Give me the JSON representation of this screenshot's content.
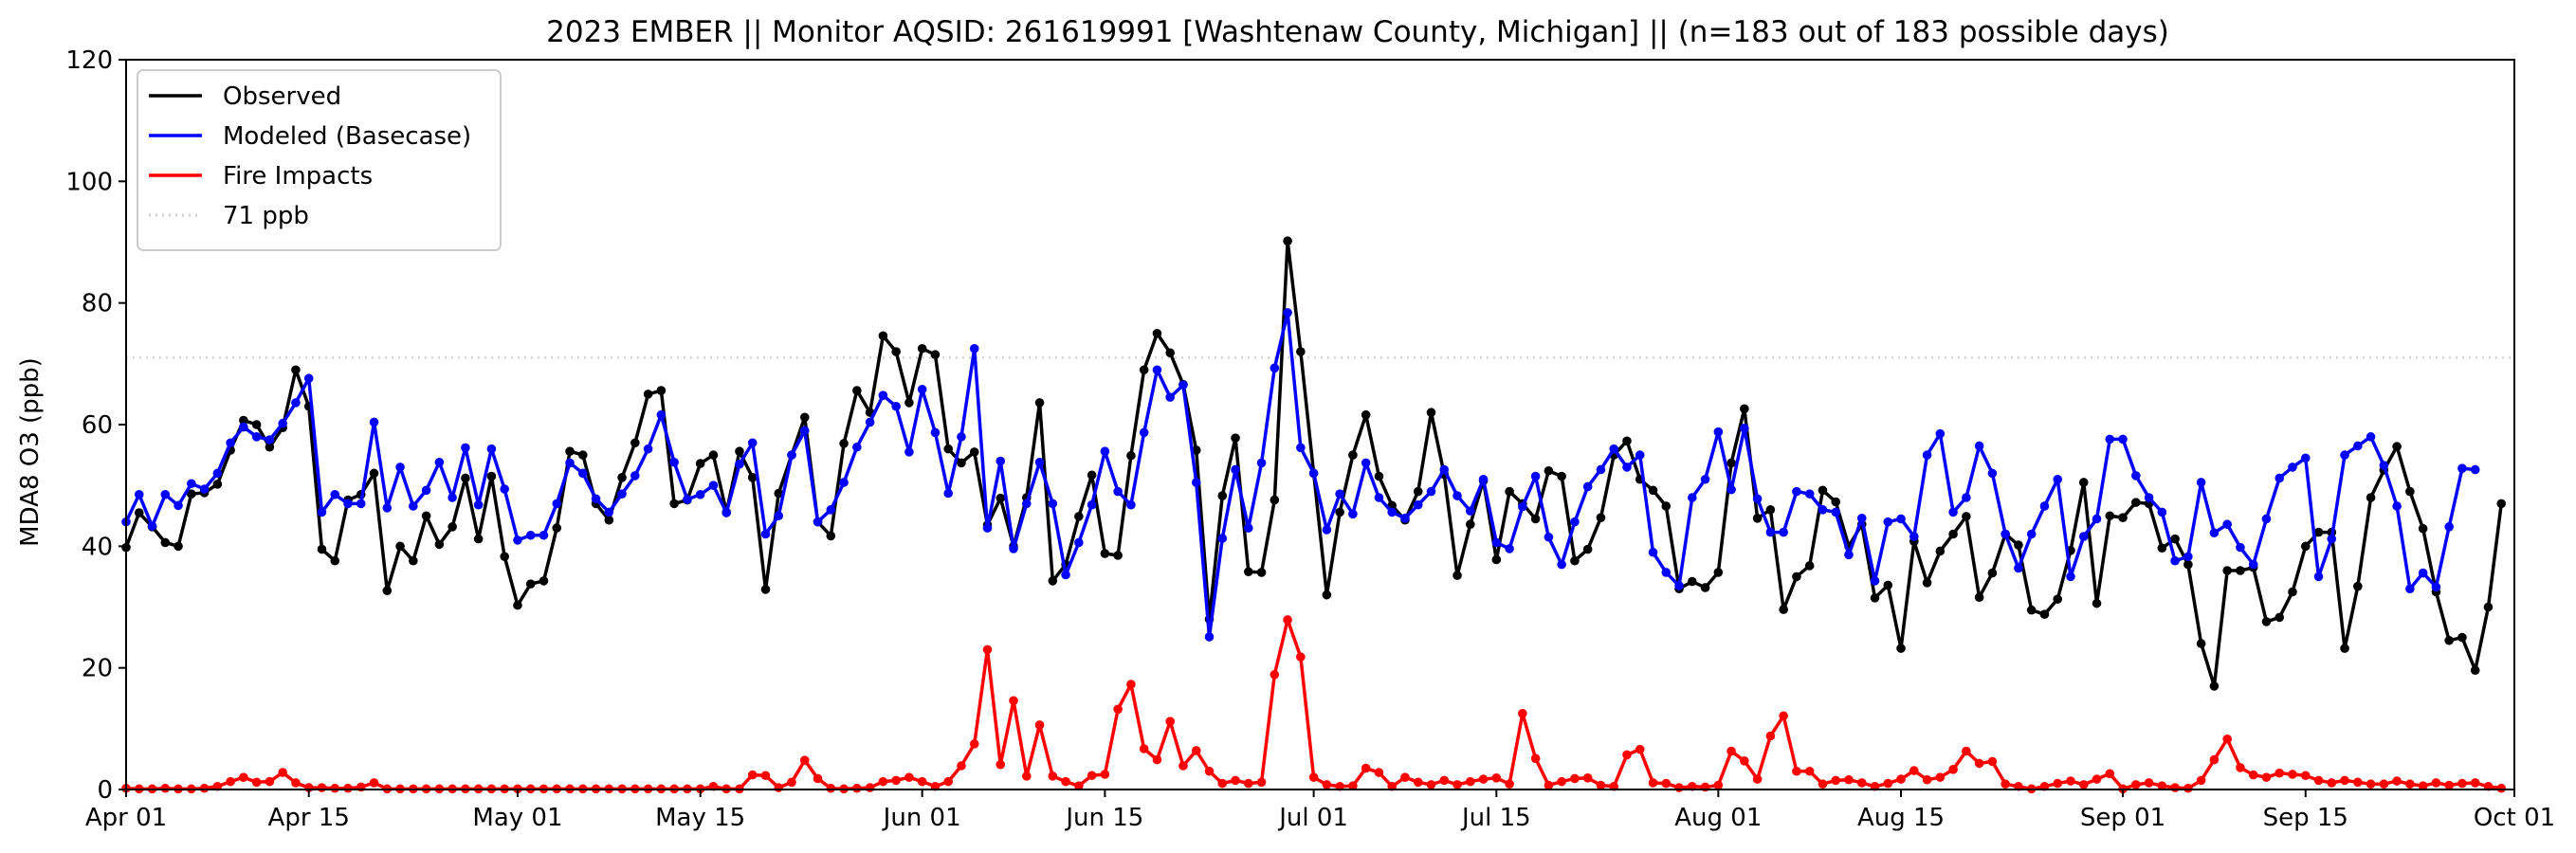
{
  "chart_data": {
    "type": "line",
    "title": "2023 EMBER || Monitor AQSID: 261619991 [Washtenaw County, Michigan] || (n=183 out of 183 possible days)",
    "xlabel": "",
    "ylabel": "MDA8 O3 (ppb)",
    "ylim": [
      0,
      120
    ],
    "yticks": [
      0,
      20,
      40,
      60,
      80,
      100,
      120
    ],
    "xlim": [
      "2023-04-01",
      "2023-10-01"
    ],
    "xtick_labels": [
      {
        "date": "2023-04-01",
        "label": "Apr 01"
      },
      {
        "date": "2023-04-15",
        "label": "Apr 15"
      },
      {
        "date": "2023-05-01",
        "label": "May 01"
      },
      {
        "date": "2023-05-15",
        "label": "May 15"
      },
      {
        "date": "2023-06-01",
        "label": "Jun 01"
      },
      {
        "date": "2023-06-15",
        "label": "Jun 15"
      },
      {
        "date": "2023-07-01",
        "label": "Jul 01"
      },
      {
        "date": "2023-07-15",
        "label": "Jul 15"
      },
      {
        "date": "2023-08-01",
        "label": "Aug 01"
      },
      {
        "date": "2023-08-15",
        "label": "Aug 15"
      },
      {
        "date": "2023-09-01",
        "label": "Sep 01"
      },
      {
        "date": "2023-09-15",
        "label": "Sep 15"
      },
      {
        "date": "2023-10-01",
        "label": "Oct 01"
      }
    ],
    "grid": false,
    "legend_position": "upper-left",
    "x_start": "2023-04-01",
    "x_end": "2023-09-30",
    "x_step": "1 day",
    "series": [
      {
        "name": "Observed",
        "color": "#000000",
        "marker": "circle",
        "values": [
          39.8,
          45.5,
          43.2,
          40.6,
          40.0,
          48.6,
          48.8,
          50.2,
          55.8,
          60.7,
          60.0,
          56.3,
          59.5,
          69.0,
          63.0,
          39.5,
          37.6,
          47.6,
          48.5,
          52.0,
          32.7,
          40.0,
          37.6,
          45.0,
          40.3,
          43.2,
          51.2,
          41.2,
          51.5,
          38.3,
          30.3,
          33.8,
          34.3,
          43.0,
          55.6,
          55.0,
          47.0,
          44.3,
          51.3,
          57.0,
          65.0,
          65.6,
          47.0,
          47.6,
          53.6,
          55.0,
          45.6,
          55.6,
          51.3,
          32.9,
          48.7,
          55.0,
          61.2,
          44.0,
          41.7,
          56.9,
          65.6,
          62.0,
          74.6,
          72.0,
          63.6,
          72.5,
          71.5,
          56.0,
          53.7,
          55.5,
          43.5,
          47.9,
          40.0,
          48.0,
          63.6,
          34.3,
          37.0,
          44.9,
          51.7,
          38.8,
          38.5,
          54.9,
          69.0,
          75.0,
          71.8,
          66.6,
          55.8,
          28.0,
          48.3,
          57.8,
          35.8,
          35.7,
          47.6,
          90.2,
          72.0,
          52.0,
          32.0,
          45.6,
          55.0,
          61.6,
          51.5,
          46.7,
          44.3,
          49.0,
          62.0,
          51.8,
          35.2,
          43.6,
          50.8,
          37.8,
          49.0,
          47.0,
          44.5,
          52.4,
          51.5,
          37.6,
          39.5,
          44.7,
          55.0,
          57.3,
          51.0,
          49.2,
          46.6,
          33.0,
          34.2,
          33.2,
          35.7,
          53.7,
          62.6,
          44.6,
          46.0,
          29.6,
          35.0,
          36.8,
          49.2,
          47.3,
          40.0,
          43.6,
          31.5,
          33.6,
          23.2,
          40.8,
          34.0,
          39.2,
          42.0,
          44.9,
          31.6,
          35.6,
          42.0,
          40.2,
          29.5,
          28.8,
          31.3,
          39.3,
          50.5,
          30.6,
          45.0,
          44.7,
          47.2,
          47.0,
          39.7,
          41.2,
          37.0,
          24.0,
          17.0,
          36.0,
          36.0,
          36.5,
          27.6,
          28.3,
          32.5,
          40.0,
          42.3,
          42.3,
          23.2,
          33.4,
          48.0,
          52.5,
          56.4,
          49.0,
          42.9,
          32.5,
          24.5,
          25.0,
          19.6,
          30.0,
          47.0
        ]
      },
      {
        "name": "Modeled (Basecase)",
        "color": "#0000ff",
        "marker": "circle",
        "values": [
          44.0,
          48.5,
          43.3,
          48.5,
          46.7,
          50.3,
          49.4,
          52.0,
          57.0,
          59.6,
          58.0,
          57.5,
          60.2,
          63.6,
          67.6,
          45.6,
          48.5,
          47.0,
          47.0,
          60.4,
          46.3,
          53.0,
          46.6,
          49.2,
          53.8,
          48.0,
          56.2,
          46.8,
          56.0,
          49.4,
          41.0,
          41.8,
          41.8,
          47.0,
          53.7,
          52.0,
          47.8,
          45.6,
          48.6,
          51.6,
          56.0,
          61.6,
          53.8,
          47.7,
          48.5,
          50.0,
          45.5,
          53.5,
          57.0,
          42.0,
          45.0,
          55.0,
          59.0,
          44.0,
          46.0,
          50.5,
          56.3,
          60.4,
          64.8,
          63.0,
          55.5,
          65.8,
          58.7,
          48.7,
          58.0,
          72.5,
          43.0,
          54.0,
          39.6,
          47.0,
          53.8,
          47.0,
          35.3,
          40.6,
          46.8,
          55.6,
          49.0,
          46.8,
          58.7,
          69.0,
          64.5,
          66.5,
          50.5,
          25.1,
          41.3,
          52.6,
          43.0,
          53.7,
          69.3,
          78.4,
          56.2,
          52.0,
          42.7,
          48.6,
          45.3,
          53.7,
          48.0,
          45.6,
          44.6,
          46.8,
          49.0,
          52.6,
          48.3,
          45.8,
          51.0,
          40.6,
          39.6,
          46.5,
          51.5,
          41.5,
          37.0,
          44.0,
          49.8,
          52.6,
          56.0,
          53.0,
          55.0,
          39.0,
          35.7,
          33.5,
          48.0,
          51.0,
          58.8,
          49.3,
          59.4,
          47.8,
          42.3,
          42.3,
          49.0,
          48.6,
          46.0,
          45.6,
          38.6,
          44.6,
          34.3,
          44.0,
          44.5,
          41.6,
          55.0,
          58.5,
          45.6,
          48.0,
          56.5,
          52.0,
          42.0,
          36.4,
          42.0,
          46.6,
          51.0,
          35.0,
          41.6,
          44.5,
          57.6,
          57.6,
          51.6,
          48.0,
          45.6,
          37.6,
          38.3,
          50.5,
          42.2,
          43.6,
          39.8,
          37.0,
          44.5,
          51.2,
          53.0,
          54.5,
          35.0,
          41.2,
          55.0,
          56.5,
          58.0,
          53.3,
          46.6,
          33.0,
          35.6,
          33.3,
          43.2,
          52.8,
          52.6
        ]
      },
      {
        "name": "Fire Impacts",
        "color": "#ff0000",
        "marker": "circle",
        "values": [
          0.2,
          0.1,
          0.1,
          0.2,
          0.1,
          0.1,
          0.2,
          0.5,
          1.3,
          2.0,
          1.2,
          1.3,
          2.8,
          1.1,
          0.3,
          0.3,
          0.2,
          0.2,
          0.4,
          1.1,
          0.1,
          0.1,
          0.1,
          0.1,
          0.1,
          0.1,
          0.1,
          0.1,
          0.1,
          0.1,
          0.1,
          0.1,
          0.1,
          0.1,
          0.1,
          0.1,
          0.1,
          0.1,
          0.1,
          0.1,
          0.1,
          0.1,
          0.1,
          0.1,
          0.1,
          0.5,
          0.1,
          0.1,
          2.4,
          2.3,
          0.3,
          1.2,
          4.8,
          1.8,
          0.2,
          0.1,
          0.2,
          0.3,
          1.3,
          1.5,
          2.0,
          1.3,
          0.5,
          1.3,
          3.9,
          7.5,
          23.0,
          4.1,
          14.6,
          2.2,
          10.6,
          2.2,
          1.3,
          0.6,
          2.3,
          2.5,
          13.2,
          17.3,
          6.7,
          4.9,
          11.2,
          3.9,
          6.4,
          3.0,
          1.0,
          1.5,
          1.0,
          1.2,
          18.9,
          27.9,
          21.8,
          2.0,
          0.8,
          0.5,
          0.6,
          3.5,
          2.8,
          0.5,
          2.0,
          1.2,
          0.8,
          1.5,
          0.8,
          1.3,
          1.7,
          1.9,
          0.9,
          12.5,
          5.1,
          0.7,
          1.3,
          1.8,
          1.9,
          0.7,
          0.5,
          5.7,
          6.6,
          1.1,
          1.0,
          0.3,
          0.5,
          0.4,
          0.7,
          6.3,
          4.7,
          1.7,
          8.8,
          12.1,
          3.0,
          3.0,
          0.9,
          1.5,
          1.6,
          1.1,
          0.5,
          1.0,
          1.7,
          3.1,
          1.6,
          2.0,
          3.3,
          6.3,
          4.3,
          4.6,
          0.9,
          0.5,
          0.1,
          0.5,
          1.0,
          1.4,
          0.8,
          1.7,
          2.6,
          0.1,
          0.8,
          1.1,
          0.6,
          0.3,
          0.2,
          1.5,
          4.9,
          8.3,
          3.6,
          2.4,
          2.0,
          2.7,
          2.5,
          2.3,
          1.5,
          1.1,
          1.5,
          1.2,
          0.9,
          0.9,
          1.4,
          0.9,
          0.6,
          1.1,
          0.7,
          1.0,
          1.1,
          0.5,
          0.2
        ]
      }
    ],
    "reference_lines": [
      {
        "name": "71 ppb",
        "y": 71,
        "color": "#d3d3d3",
        "style": "dotted"
      }
    ]
  }
}
